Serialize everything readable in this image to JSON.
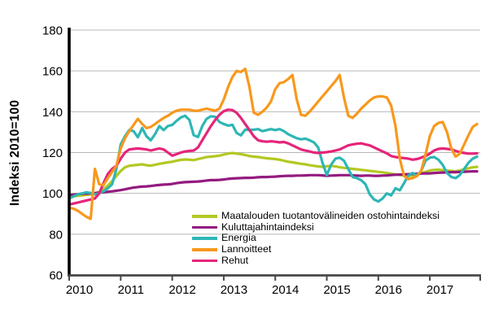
{
  "chart_data": {
    "type": "line",
    "title": "",
    "ylabel": "Indeksi 2010=100",
    "xlabel": "",
    "x_unit": "month",
    "x_range": [
      "2010-01",
      "2017-12"
    ],
    "x_tick_labels": [
      "2010",
      "2011",
      "2012",
      "2013",
      "2014",
      "2015",
      "2016",
      "2017"
    ],
    "y_ticks": [
      60,
      80,
      100,
      120,
      140,
      160,
      180
    ],
    "ylim": [
      60,
      180
    ],
    "grid": "horizontal",
    "legend_position": "inside-bottom-center",
    "series": [
      {
        "id": "ostohintaindeksi",
        "name": "Maatalouden tuotantovälineiden ostohintaindeksi",
        "color": "#b3c822",
        "values": [
          98.3,
          98.5,
          98.8,
          99.0,
          99.3,
          99.5,
          100.0,
          100.8,
          102.0,
          103.8,
          106.0,
          108.5,
          111.0,
          112.8,
          113.5,
          113.8,
          114.0,
          114.2,
          113.8,
          113.6,
          114.0,
          114.5,
          114.8,
          115.2,
          115.5,
          116.0,
          116.4,
          116.6,
          116.5,
          116.3,
          116.8,
          117.3,
          117.8,
          118.0,
          118.2,
          118.5,
          119.0,
          119.5,
          119.8,
          119.5,
          119.2,
          118.8,
          118.3,
          118.0,
          117.8,
          117.5,
          117.2,
          117.0,
          116.8,
          116.5,
          116.0,
          115.5,
          115.2,
          114.8,
          114.5,
          114.2,
          113.8,
          113.5,
          113.2,
          113.0,
          113.3,
          113.5,
          113.2,
          112.8,
          112.5,
          112.3,
          112.0,
          111.8,
          111.5,
          111.3,
          111.0,
          110.8,
          110.5,
          110.3,
          110.0,
          109.6,
          109.3,
          109.0,
          108.8,
          108.6,
          108.8,
          109.2,
          109.8,
          110.5,
          111.2,
          111.5,
          111.6,
          111.4,
          111.2,
          111.0,
          110.8,
          111.2,
          111.8,
          112.3,
          112.8,
          113.0
        ]
      },
      {
        "id": "kuluttajahintaindeksi",
        "name": "Kuluttajahintaindeksi",
        "color": "#941b80",
        "values": [
          99.2,
          99.4,
          99.6,
          99.8,
          99.9,
          100.0,
          100.1,
          100.3,
          100.5,
          100.8,
          101.0,
          101.3,
          101.6,
          102.0,
          102.4,
          102.8,
          103.1,
          103.3,
          103.4,
          103.6,
          103.9,
          104.1,
          104.3,
          104.4,
          104.6,
          105.0,
          105.3,
          105.5,
          105.6,
          105.7,
          105.8,
          106.0,
          106.3,
          106.5,
          106.5,
          106.6,
          106.8,
          107.1,
          107.3,
          107.4,
          107.5,
          107.6,
          107.6,
          107.7,
          107.9,
          108.0,
          108.0,
          108.1,
          108.2,
          108.4,
          108.5,
          108.6,
          108.6,
          108.7,
          108.7,
          108.8,
          108.9,
          108.9,
          108.9,
          108.8,
          108.6,
          108.7,
          108.8,
          108.9,
          108.9,
          108.9,
          108.8,
          108.7,
          108.6,
          108.7,
          108.7,
          108.6,
          108.6,
          108.7,
          108.8,
          109.0,
          109.1,
          109.2,
          109.3,
          109.4,
          109.5,
          109.6,
          109.7,
          109.8,
          109.8,
          110.0,
          110.1,
          110.2,
          110.3,
          110.4,
          110.4,
          110.5,
          110.6,
          110.7,
          110.8,
          110.8
        ]
      },
      {
        "id": "energia",
        "name": "Energia",
        "color": "#2eb6b6",
        "values": [
          97.5,
          98.5,
          99.5,
          100.0,
          100.5,
          100.2,
          99.5,
          100.0,
          101.0,
          102.5,
          104.5,
          112.0,
          124.0,
          128.0,
          131.0,
          130.5,
          127.5,
          132.0,
          128.0,
          126.0,
          129.0,
          133.0,
          131.0,
          133.0,
          133.5,
          135.5,
          137.2,
          138.0,
          136.0,
          128.5,
          127.6,
          133.0,
          136.5,
          137.8,
          137.5,
          135.0,
          134.0,
          133.2,
          133.6,
          129.6,
          128.4,
          131.2,
          131.0,
          131.2,
          131.5,
          130.5,
          131.0,
          131.5,
          131.0,
          131.5,
          130.5,
          129.0,
          128.0,
          127.0,
          126.5,
          126.8,
          126.0,
          125.0,
          122.5,
          115.0,
          109.0,
          114.0,
          117.0,
          117.5,
          116.0,
          112.0,
          108.0,
          107.5,
          106.5,
          104.5,
          99.5,
          97.0,
          96.0,
          97.5,
          100.0,
          99.0,
          102.5,
          101.5,
          105.0,
          108.8,
          110.0,
          108.8,
          111.0,
          116.0,
          117.5,
          117.8,
          116.5,
          114.0,
          110.0,
          108.0,
          107.5,
          109.0,
          112.0,
          115.0,
          117.0,
          118.0
        ]
      },
      {
        "id": "lannoitteet",
        "name": "Lannoitteet",
        "color": "#f8981d",
        "values": [
          93.0,
          92.5,
          91.5,
          90.0,
          88.5,
          87.5,
          112.0,
          104.5,
          104.0,
          107.5,
          110.5,
          113.5,
          122.0,
          127.0,
          130.5,
          133.5,
          136.5,
          134.0,
          132.0,
          132.5,
          134.0,
          135.5,
          137.0,
          138.0,
          139.5,
          140.5,
          141.0,
          141.0,
          141.0,
          140.5,
          140.5,
          141.0,
          141.5,
          141.0,
          140.5,
          141.5,
          146.0,
          152.0,
          157.0,
          160.0,
          159.5,
          161.0,
          152.0,
          139.5,
          138.5,
          140.0,
          142.0,
          145.0,
          151.0,
          154.0,
          154.5,
          156.0,
          158.0,
          146.0,
          138.5,
          138.0,
          140.0,
          142.5,
          145.0,
          147.5,
          150.0,
          152.5,
          155.0,
          158.0,
          147.0,
          138.0,
          137.0,
          139.0,
          141.5,
          143.5,
          145.5,
          147.0,
          147.5,
          147.5,
          147.0,
          143.0,
          133.0,
          117.0,
          108.5,
          107.0,
          107.5,
          108.5,
          111.0,
          119.0,
          128.0,
          133.0,
          134.5,
          135.0,
          130.0,
          122.0,
          118.0,
          119.5,
          124.0,
          128.5,
          132.5,
          134.0
        ]
      },
      {
        "id": "rehut",
        "name": "Rehut",
        "color": "#e6247a",
        "values": [
          94.5,
          95.0,
          95.5,
          96.0,
          96.5,
          97.0,
          97.5,
          100.0,
          105.0,
          109.5,
          112.0,
          113.5,
          117.0,
          120.0,
          121.5,
          121.8,
          122.0,
          121.8,
          121.5,
          121.0,
          121.5,
          122.0,
          121.5,
          120.0,
          118.5,
          119.2,
          120.0,
          120.5,
          120.8,
          121.0,
          122.5,
          126.0,
          129.5,
          133.0,
          136.0,
          138.5,
          140.3,
          141.0,
          140.8,
          139.5,
          137.0,
          134.0,
          131.0,
          128.0,
          126.0,
          125.5,
          125.3,
          125.5,
          125.3,
          125.0,
          125.2,
          124.5,
          123.5,
          122.5,
          121.5,
          121.0,
          120.5,
          120.0,
          119.8,
          120.0,
          120.2,
          120.5,
          121.0,
          121.5,
          122.5,
          123.5,
          124.0,
          124.3,
          124.5,
          124.0,
          123.5,
          122.5,
          121.5,
          120.5,
          119.6,
          118.3,
          117.8,
          117.5,
          117.3,
          117.0,
          116.5,
          116.8,
          117.5,
          118.3,
          119.5,
          121.0,
          121.8,
          122.0,
          121.8,
          121.5,
          120.8,
          120.2,
          119.8,
          119.5,
          119.5,
          119.6
        ]
      }
    ]
  }
}
